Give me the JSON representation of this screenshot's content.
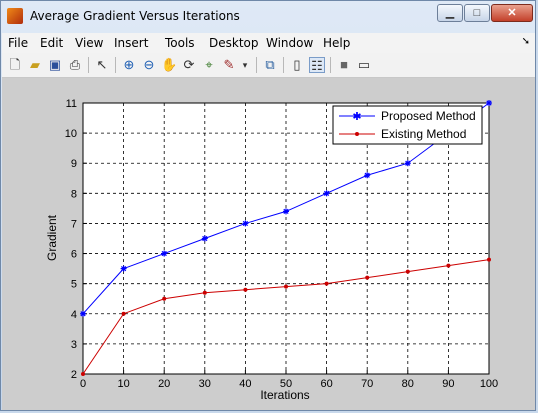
{
  "window": {
    "title": "Average Gradient Versus Iterations"
  },
  "menu": [
    "File",
    "Edit",
    "View",
    "Insert",
    "Tools",
    "Desktop",
    "Window",
    "Help"
  ],
  "toolbar": [
    "new-file-icon",
    "open-folder-icon",
    "save-icon",
    "print-icon",
    "pointer-icon",
    "zoom-in-icon",
    "zoom-out-icon",
    "pan-hand-icon",
    "rotate-3d-icon",
    "data-cursor-icon",
    "brush-icon",
    "link-plot-icon",
    "colorbar-icon",
    "legend-icon",
    "hide-plot-tools-icon",
    "show-plot-tools-icon"
  ],
  "chart_data": {
    "type": "line",
    "title": "",
    "xlabel": "Iterations",
    "ylabel": "Gradient",
    "xlim": [
      0,
      100
    ],
    "ylim": [
      2,
      11
    ],
    "x": [
      0,
      10,
      20,
      30,
      40,
      50,
      60,
      70,
      80,
      90,
      100
    ],
    "xticks": [
      0,
      10,
      20,
      30,
      40,
      50,
      60,
      70,
      80,
      90,
      100
    ],
    "yticks": [
      2,
      3,
      4,
      5,
      6,
      7,
      8,
      9,
      10,
      11
    ],
    "grid": true,
    "legend_position": "top-right",
    "series": [
      {
        "name": "Proposed Method",
        "color": "#0000ff",
        "marker": "asterisk",
        "values": [
          4,
          5.5,
          6,
          6.5,
          7,
          7.4,
          8,
          8.6,
          9,
          10,
          11
        ]
      },
      {
        "name": "Existing Method",
        "color": "#cc0000",
        "marker": "dot",
        "values": [
          2,
          4,
          4.5,
          4.7,
          4.8,
          4.9,
          5,
          5.2,
          5.4,
          5.6,
          5.8
        ]
      }
    ]
  }
}
